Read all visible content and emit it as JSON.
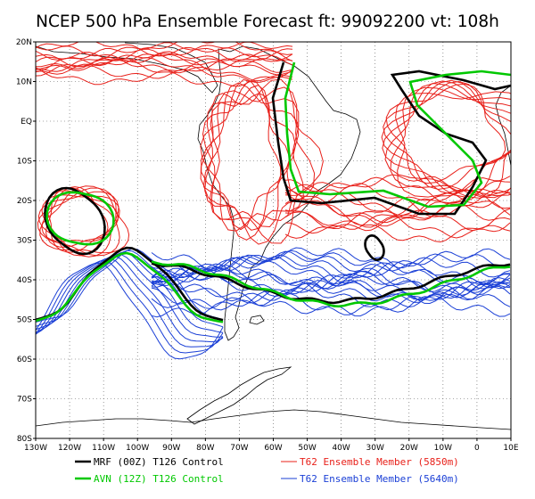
{
  "title": "NCEP 500 hPa Ensemble Forecast  ft: 99092200 vt: 108h",
  "axes": {
    "lat_labels": [
      "20N",
      "10N",
      "EQ",
      "10S",
      "20S",
      "30S",
      "40S",
      "50S",
      "60S",
      "70S",
      "80S"
    ],
    "lon_labels": [
      "130W",
      "120W",
      "110W",
      "100W",
      "90W",
      "80W",
      "70W",
      "60W",
      "50W",
      "40W",
      "30W",
      "20W",
      "10W",
      "0",
      "10E"
    ]
  },
  "legend": [
    {
      "label": "MRF (00Z) T126 Control",
      "color": "#000000",
      "width": 2.6
    },
    {
      "label": "AVN (12Z) T126 Control",
      "color": "#00c800",
      "width": 2.6
    },
    {
      "label": "T62 Ensemble Member (5850m)",
      "color": "#e8201a",
      "width": 1
    },
    {
      "label": "T62 Ensemble Member (5640m)",
      "color": "#1a3fd6",
      "width": 1
    }
  ],
  "colors": {
    "red": "#e8201a",
    "blue": "#1a3fd6",
    "green": "#00c800",
    "black": "#000000",
    "coast": "#000000"
  }
}
